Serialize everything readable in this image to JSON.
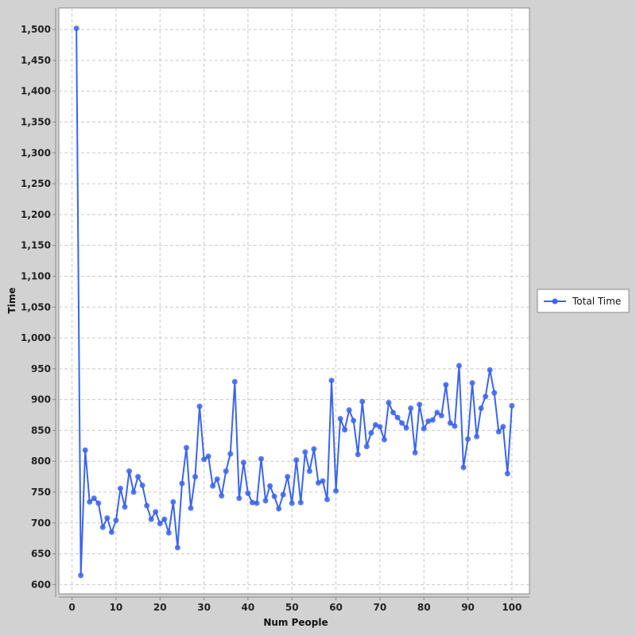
{
  "chart_data": {
    "type": "line",
    "title": "",
    "xlabel": "Num People",
    "ylabel": "Time",
    "xlim": [
      -3,
      104
    ],
    "ylim": [
      585,
      1535
    ],
    "xticks": [
      0,
      10,
      20,
      30,
      40,
      50,
      60,
      70,
      80,
      90,
      100
    ],
    "xtick_labels": [
      "0",
      "10",
      "20",
      "30",
      "40",
      "50",
      "60",
      "70",
      "80",
      "90",
      "100"
    ],
    "yticks": [
      600,
      650,
      700,
      750,
      800,
      850,
      900,
      950,
      1000,
      1050,
      1100,
      1150,
      1200,
      1250,
      1300,
      1350,
      1400,
      1450,
      1500
    ],
    "ytick_labels": [
      "600",
      "650",
      "700",
      "750",
      "800",
      "850",
      "900",
      "950",
      "1,000",
      "1,050",
      "1,100",
      "1,150",
      "1,200",
      "1,250",
      "1,300",
      "1,350",
      "1,400",
      "1,450",
      "1,500"
    ],
    "grid": true,
    "legend_position": "right",
    "series": [
      {
        "name": "Total Time",
        "color": "#3b64f0",
        "x": [
          1,
          2,
          3,
          4,
          5,
          6,
          7,
          8,
          9,
          10,
          11,
          12,
          13,
          14,
          15,
          16,
          17,
          18,
          19,
          20,
          21,
          22,
          23,
          24,
          25,
          26,
          27,
          28,
          29,
          30,
          31,
          32,
          33,
          34,
          35,
          36,
          37,
          38,
          39,
          40,
          41,
          42,
          43,
          44,
          45,
          46,
          47,
          48,
          49,
          50,
          51,
          52,
          53,
          54,
          55,
          56,
          57,
          58,
          59,
          60,
          61,
          62,
          63,
          64,
          65,
          66,
          67,
          68,
          69,
          70,
          71,
          72,
          73,
          74,
          75,
          76,
          77,
          78,
          79,
          80,
          81,
          82,
          83,
          84,
          85,
          86,
          87,
          88,
          89,
          90,
          91,
          92,
          93,
          94,
          95,
          96,
          97,
          98,
          99,
          100
        ],
        "y": [
          1502,
          615,
          818,
          734,
          740,
          732,
          693,
          708,
          685,
          704,
          756,
          726,
          784,
          750,
          775,
          761,
          728,
          706,
          718,
          699,
          706,
          684,
          734,
          660,
          764,
          822,
          724,
          775,
          889,
          803,
          808,
          760,
          771,
          744,
          784,
          812,
          929,
          740,
          798,
          748,
          733,
          732,
          804,
          736,
          760,
          743,
          723,
          746,
          775,
          732,
          802,
          733,
          815,
          784,
          820,
          765,
          768,
          738,
          931,
          752,
          869,
          851,
          883,
          866,
          811,
          897,
          824,
          846,
          859,
          856,
          835,
          895,
          879,
          871,
          862,
          854,
          886,
          814,
          892,
          853,
          865,
          867,
          879,
          874,
          924,
          862,
          857,
          955,
          790,
          836,
          927,
          840,
          886,
          905,
          948,
          911,
          848,
          856,
          780,
          890
        ]
      }
    ]
  }
}
